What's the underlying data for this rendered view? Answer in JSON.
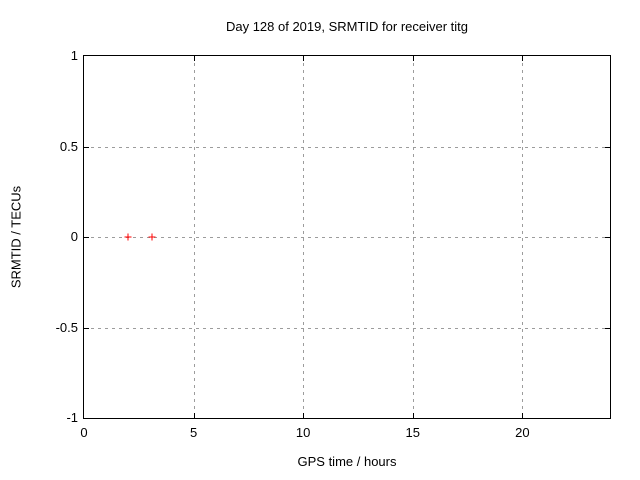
{
  "title": "Day 128 of 2019, SRMTID for receiver titg",
  "chart_data": {
    "type": "scatter",
    "title": "Day 128 of 2019, SRMTID for receiver titg",
    "xlabel": "GPS time / hours",
    "ylabel": "SRMTID / TECUs",
    "xlim": [
      0,
      24
    ],
    "ylim": [
      -1,
      1
    ],
    "xticks": [
      {
        "value": 0,
        "label": "0"
      },
      {
        "value": 5,
        "label": "5"
      },
      {
        "value": 10,
        "label": "10"
      },
      {
        "value": 15,
        "label": "15"
      },
      {
        "value": 20,
        "label": "20"
      }
    ],
    "yticks": [
      {
        "value": -1,
        "label": "-1"
      },
      {
        "value": -0.5,
        "label": "-0.5"
      },
      {
        "value": 0,
        "label": "0"
      },
      {
        "value": 0.5,
        "label": "0.5"
      },
      {
        "value": 1,
        "label": "1"
      }
    ],
    "grid": true,
    "legend": false,
    "series": [
      {
        "name": "SRMTID",
        "marker": "plus",
        "color": "#ff0000",
        "points": [
          {
            "x": 2.0,
            "y": 0.0
          },
          {
            "x": 3.1,
            "y": 0.0
          }
        ]
      }
    ],
    "colors": {
      "border": "#000000",
      "grid": "#9c9c9c",
      "text": "#000000"
    }
  }
}
